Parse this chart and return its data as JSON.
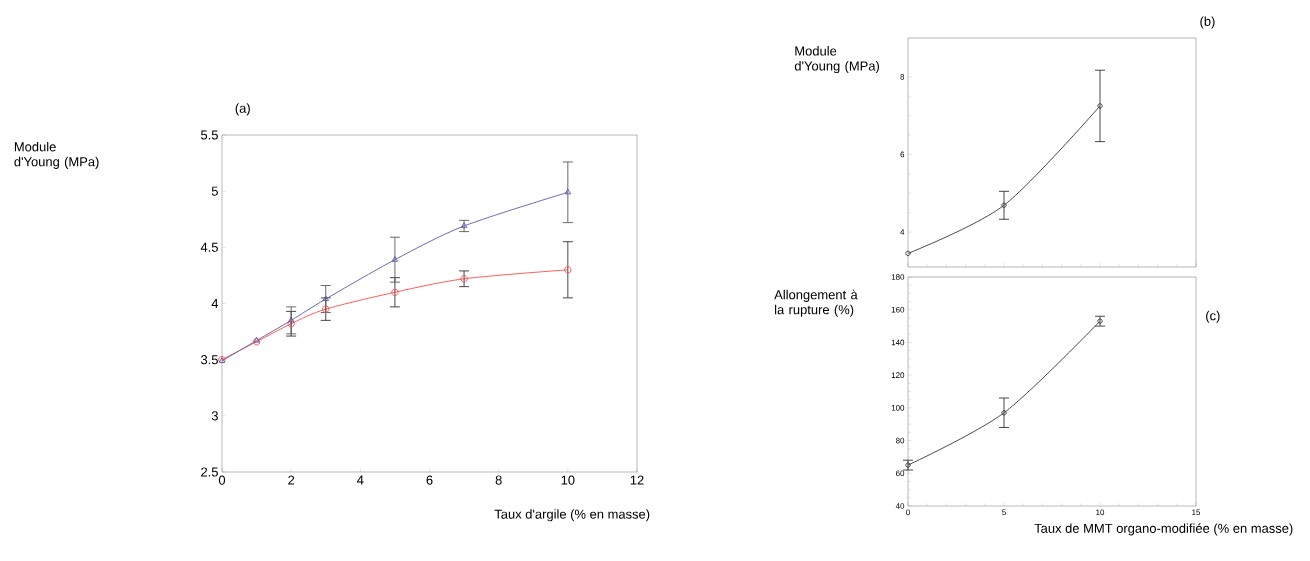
{
  "chart_data": [
    {
      "type": "line",
      "title": "(a)",
      "xlabel": "Taux d'argile (% en masse)",
      "ylabel": "Module d'Young (MPa)",
      "x": [
        0,
        1,
        2,
        3,
        5,
        7,
        10
      ],
      "xlim": [
        0,
        12
      ],
      "ylim": [
        2.5,
        5.5
      ],
      "xticks": [
        0,
        2,
        4,
        6,
        8,
        10,
        12
      ],
      "yticks": [
        2.5,
        3,
        3.5,
        4,
        4.5,
        5,
        5.5
      ],
      "grid": false,
      "series": [
        {
          "color": "#ff4b4b",
          "marker": "circle",
          "values": [
            3.5,
            3.66,
            3.82,
            3.95,
            4.1,
            4.22,
            4.3
          ],
          "errors": [
            null,
            null,
            0.11,
            0.1,
            0.13,
            0.07,
            0.25
          ]
        },
        {
          "color": "#5a5aaa",
          "marker": "triangle",
          "values": [
            3.49,
            3.67,
            3.85,
            4.04,
            4.39,
            4.69,
            4.99
          ],
          "errors": [
            null,
            null,
            0.12,
            0.12,
            0.2,
            0.05,
            0.27
          ]
        }
      ]
    },
    {
      "type": "line",
      "title": "(b)",
      "ylabel": "Module d'Young (MPa)",
      "x": [
        0,
        5,
        10
      ],
      "xlim": [
        0,
        15
      ],
      "ylim": [
        3.1,
        9
      ],
      "xticks": [
        0,
        5,
        10,
        15
      ],
      "yticks": [
        4,
        6,
        8
      ],
      "tick_labels": "y",
      "grid": false,
      "marker": "circle",
      "series": [
        {
          "color": "#333333",
          "values": [
            3.45,
            4.69,
            7.25
          ],
          "errors": [
            null,
            0.36,
            0.92
          ]
        }
      ]
    },
    {
      "type": "line",
      "title": "(c)",
      "xlabel": "Taux de MMT organo-modifiée (% en masse)",
      "ylabel": "Allongement à la rupture (%)",
      "x": [
        0,
        5,
        10
      ],
      "xlim": [
        0,
        15
      ],
      "ylim": [
        40,
        180
      ],
      "xticks": [
        0,
        5,
        10,
        15
      ],
      "yticks": [
        40,
        60,
        80,
        100,
        120,
        140,
        160,
        180
      ],
      "grid": false,
      "marker": "circle",
      "series": [
        {
          "color": "#333333",
          "values": [
            65,
            97,
            153
          ],
          "errors": [
            3,
            9,
            3
          ]
        }
      ]
    }
  ]
}
